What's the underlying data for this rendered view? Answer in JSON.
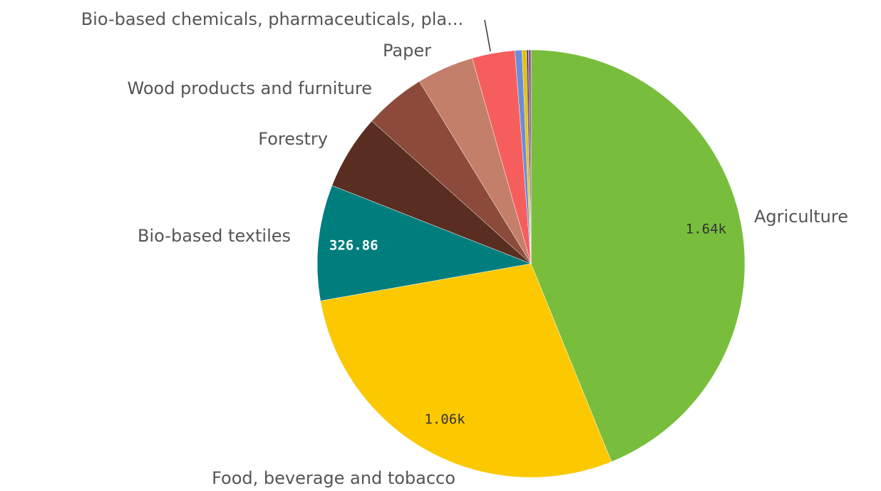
{
  "chart_data": {
    "type": "pie",
    "categories": [
      "Agriculture",
      "Food, beverage and tobacco",
      "Bio-based textiles",
      "Forestry",
      "Wood products and furniture",
      "Paper",
      "Bio-based chemicals, pharmaceuticals, pla...",
      null,
      null,
      null,
      null
    ],
    "values": [
      1640,
      1060,
      326.86,
      212,
      173,
      161,
      121,
      20,
      12,
      6,
      7
    ],
    "value_labels": [
      "1.64k",
      "1.06k",
      "326.86",
      null,
      null,
      null,
      null,
      null,
      null,
      null,
      null
    ],
    "colors": [
      "#78be3c",
      "#fcc800",
      "#007d7d",
      "#5a2d21",
      "#8c4a3a",
      "#c47f6a",
      "#f65e5e",
      "#6a8ed6",
      "#e8c000",
      "#555555",
      "#9a4fa0"
    ]
  }
}
